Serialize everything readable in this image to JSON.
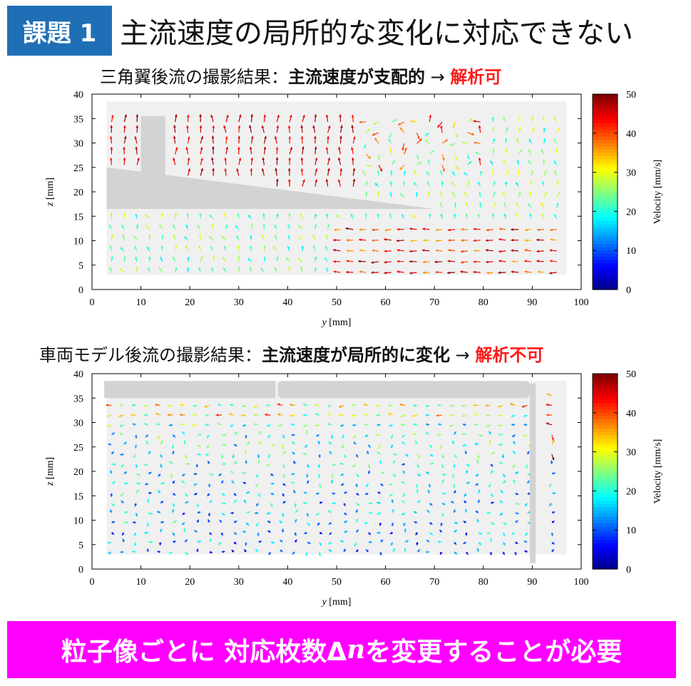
{
  "header": {
    "badge": "課題 1",
    "title": "主流速度の局所的な変化に対応できない"
  },
  "caption1": {
    "lead": "三角翼後流の撮影結果：",
    "emphasis": "主流速度が支配的",
    "arrow": " → ",
    "result": "解析可"
  },
  "caption2": {
    "lead": "車両モデル後流の撮影結果：",
    "emphasis": "主流速度が局所的に変化",
    "arrow": " → ",
    "result": "解析不可"
  },
  "axes": {
    "xlabel_var": "y",
    "xlabel_unit": " [mm]",
    "ylabel_var": "z",
    "ylabel_unit": " [mm]",
    "xticks": [
      "0",
      "10",
      "20",
      "30",
      "40",
      "50",
      "60",
      "70",
      "80",
      "90",
      "100"
    ],
    "yticks": [
      "0",
      "5",
      "10",
      "15",
      "20",
      "25",
      "30",
      "35",
      "40"
    ],
    "colorbar_label": "Velocity [mm/s]",
    "colorbar_ticks": [
      "0",
      "10",
      "20",
      "30",
      "40",
      "50"
    ]
  },
  "colors": {
    "badge": "#1f6fb6",
    "banner": "#ff00ff",
    "highlight": "#ff1a1a",
    "model": "#d3d3d3"
  },
  "footer": {
    "text": "粒子像ごとに 対応枚数Δ",
    "var": "n",
    "text2": " を変更することが必要"
  }
}
